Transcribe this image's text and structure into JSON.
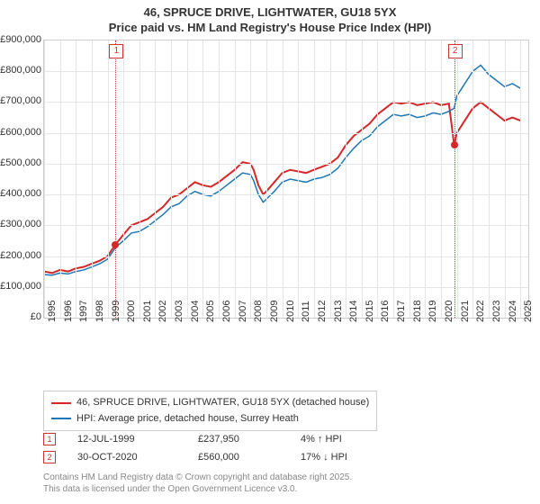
{
  "title_line1": "46, SPRUCE DRIVE, LIGHTWATER, GU18 5YX",
  "title_line2": "Price paid vs. HM Land Registry's House Price Index (HPI)",
  "chart": {
    "type": "line",
    "background_color": "#ffffff",
    "grid_color": "#e5e5e5",
    "border_color": "#cccccc",
    "xlim": [
      1995,
      2025.5
    ],
    "ylim": [
      0,
      900000
    ],
    "ytick_step": 100000,
    "yticks": [
      "£0",
      "£100,000",
      "£200,000",
      "£300,000",
      "£400,000",
      "£500,000",
      "£600,000",
      "£700,000",
      "£800,000",
      "£900,000"
    ],
    "xticks": [
      1995,
      1996,
      1997,
      1998,
      1999,
      2000,
      2001,
      2002,
      2003,
      2004,
      2005,
      2006,
      2007,
      2008,
      2009,
      2010,
      2011,
      2012,
      2013,
      2014,
      2015,
      2016,
      2017,
      2018,
      2019,
      2020,
      2021,
      2022,
      2023,
      2024,
      2025
    ],
    "series": [
      {
        "name": "46, SPRUCE DRIVE, LIGHTWATER, GU18 5YX (detached house)",
        "color": "#d62728",
        "line_width": 2,
        "data": [
          [
            1995,
            150000
          ],
          [
            1995.5,
            145000
          ],
          [
            1996,
            155000
          ],
          [
            1996.5,
            150000
          ],
          [
            1997,
            160000
          ],
          [
            1997.5,
            165000
          ],
          [
            1998,
            175000
          ],
          [
            1998.5,
            185000
          ],
          [
            1999,
            200000
          ],
          [
            1999.5,
            237950
          ],
          [
            2000,
            270000
          ],
          [
            2000.5,
            300000
          ],
          [
            2001,
            310000
          ],
          [
            2001.5,
            320000
          ],
          [
            2002,
            340000
          ],
          [
            2002.5,
            360000
          ],
          [
            2003,
            390000
          ],
          [
            2003.5,
            400000
          ],
          [
            2004,
            420000
          ],
          [
            2004.5,
            440000
          ],
          [
            2005,
            430000
          ],
          [
            2005.5,
            425000
          ],
          [
            2006,
            440000
          ],
          [
            2006.5,
            460000
          ],
          [
            2007,
            480000
          ],
          [
            2007.5,
            505000
          ],
          [
            2008,
            500000
          ],
          [
            2008.2,
            480000
          ],
          [
            2008.5,
            430000
          ],
          [
            2008.8,
            400000
          ],
          [
            2009,
            410000
          ],
          [
            2009.5,
            440000
          ],
          [
            2010,
            470000
          ],
          [
            2010.5,
            480000
          ],
          [
            2011,
            475000
          ],
          [
            2011.5,
            470000
          ],
          [
            2012,
            480000
          ],
          [
            2012.5,
            490000
          ],
          [
            2013,
            500000
          ],
          [
            2013.5,
            520000
          ],
          [
            2014,
            560000
          ],
          [
            2014.5,
            590000
          ],
          [
            2015,
            610000
          ],
          [
            2015.5,
            630000
          ],
          [
            2016,
            660000
          ],
          [
            2016.5,
            680000
          ],
          [
            2017,
            700000
          ],
          [
            2017.5,
            695000
          ],
          [
            2018,
            700000
          ],
          [
            2018.5,
            690000
          ],
          [
            2019,
            695000
          ],
          [
            2019.5,
            700000
          ],
          [
            2020,
            690000
          ],
          [
            2020.5,
            695000
          ],
          [
            2020.83,
            560000
          ],
          [
            2021,
            600000
          ],
          [
            2021.5,
            640000
          ],
          [
            2022,
            680000
          ],
          [
            2022.5,
            700000
          ],
          [
            2023,
            680000
          ],
          [
            2023.5,
            660000
          ],
          [
            2024,
            640000
          ],
          [
            2024.5,
            650000
          ],
          [
            2025,
            640000
          ]
        ]
      },
      {
        "name": "HPI: Average price, detached house, Surrey Heath",
        "color": "#1f77b4",
        "line_width": 1.5,
        "data": [
          [
            1995,
            140000
          ],
          [
            1995.5,
            138000
          ],
          [
            1996,
            145000
          ],
          [
            1996.5,
            142000
          ],
          [
            1997,
            150000
          ],
          [
            1997.5,
            155000
          ],
          [
            1998,
            165000
          ],
          [
            1998.5,
            175000
          ],
          [
            1999,
            190000
          ],
          [
            1999.5,
            228000
          ],
          [
            2000,
            250000
          ],
          [
            2000.5,
            275000
          ],
          [
            2001,
            280000
          ],
          [
            2001.5,
            295000
          ],
          [
            2002,
            315000
          ],
          [
            2002.5,
            335000
          ],
          [
            2003,
            360000
          ],
          [
            2003.5,
            370000
          ],
          [
            2004,
            395000
          ],
          [
            2004.5,
            410000
          ],
          [
            2005,
            400000
          ],
          [
            2005.5,
            395000
          ],
          [
            2006,
            410000
          ],
          [
            2006.5,
            430000
          ],
          [
            2007,
            450000
          ],
          [
            2007.5,
            470000
          ],
          [
            2008,
            465000
          ],
          [
            2008.2,
            445000
          ],
          [
            2008.5,
            400000
          ],
          [
            2008.8,
            375000
          ],
          [
            2009,
            385000
          ],
          [
            2009.5,
            410000
          ],
          [
            2010,
            440000
          ],
          [
            2010.5,
            450000
          ],
          [
            2011,
            445000
          ],
          [
            2011.5,
            440000
          ],
          [
            2012,
            450000
          ],
          [
            2012.5,
            455000
          ],
          [
            2013,
            465000
          ],
          [
            2013.5,
            485000
          ],
          [
            2014,
            520000
          ],
          [
            2014.5,
            550000
          ],
          [
            2015,
            575000
          ],
          [
            2015.5,
            590000
          ],
          [
            2016,
            620000
          ],
          [
            2016.5,
            640000
          ],
          [
            2017,
            660000
          ],
          [
            2017.5,
            655000
          ],
          [
            2018,
            660000
          ],
          [
            2018.5,
            650000
          ],
          [
            2019,
            655000
          ],
          [
            2019.5,
            665000
          ],
          [
            2020,
            660000
          ],
          [
            2020.5,
            670000
          ],
          [
            2020.83,
            680000
          ],
          [
            2021,
            720000
          ],
          [
            2021.5,
            760000
          ],
          [
            2022,
            800000
          ],
          [
            2022.5,
            820000
          ],
          [
            2023,
            790000
          ],
          [
            2023.5,
            770000
          ],
          [
            2024,
            750000
          ],
          [
            2024.5,
            760000
          ],
          [
            2025,
            745000
          ]
        ]
      }
    ],
    "markers": [
      {
        "id": "1",
        "x": 1999.5,
        "y": 237950,
        "color": "#d62728"
      },
      {
        "id": "2",
        "x": 2020.83,
        "y": 560000,
        "color": "#d62728"
      }
    ]
  },
  "legend": {
    "items": [
      {
        "color": "#d62728",
        "label": "46, SPRUCE DRIVE, LIGHTWATER, GU18 5YX (detached house)"
      },
      {
        "color": "#1f77b4",
        "label": "HPI: Average price, detached house, Surrey Heath"
      }
    ]
  },
  "transactions": [
    {
      "marker": "1",
      "date": "12-JUL-1999",
      "price": "£237,950",
      "diff": "4% ↑ HPI"
    },
    {
      "marker": "2",
      "date": "30-OCT-2020",
      "price": "£560,000",
      "diff": "17% ↓ HPI"
    }
  ],
  "footer_line1": "Contains HM Land Registry data © Crown copyright and database right 2025.",
  "footer_line2": "This data is licensed under the Open Government Licence v3.0."
}
